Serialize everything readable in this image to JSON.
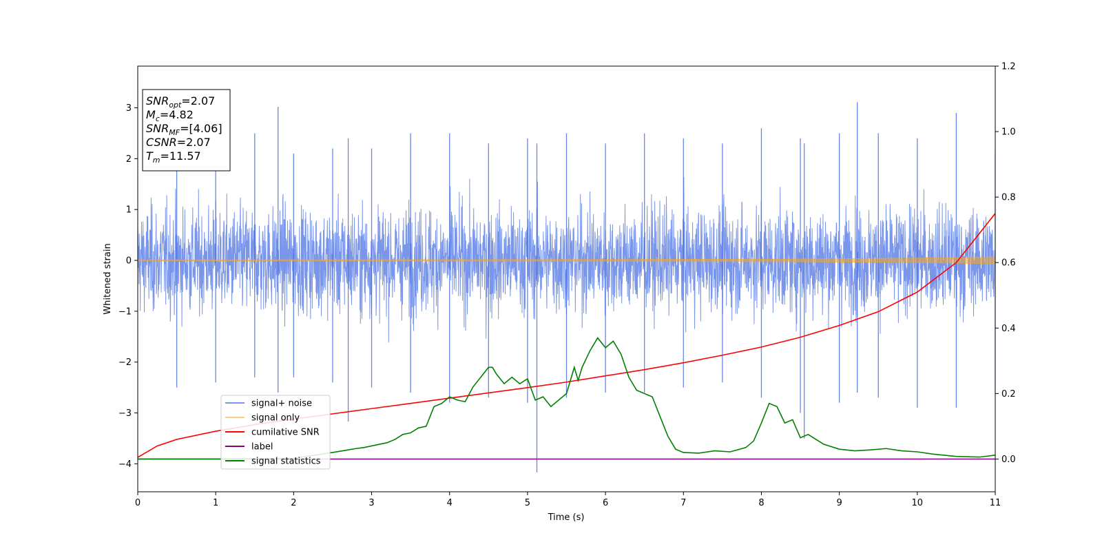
{
  "chart_data": {
    "type": "line",
    "title": "",
    "xlabel": "Time (s)",
    "ylabel": "Whitened strain",
    "xlim": [
      0,
      11
    ],
    "ylim": [
      -4.55,
      3.82
    ],
    "y2lim": [
      -0.1,
      1.2
    ],
    "xticks": [
      0,
      1,
      2,
      3,
      4,
      5,
      6,
      7,
      8,
      9,
      10,
      11
    ],
    "yticks": [
      -4,
      -3,
      -2,
      -1,
      0,
      1,
      2,
      3
    ],
    "y2ticks": [
      "0.0",
      "0.2",
      "0.4",
      "0.6",
      "0.8",
      "1.0",
      "1.2"
    ],
    "legend_position": "lower-left",
    "grid": false,
    "series": [
      {
        "name": "signal+ noise",
        "color": "#4169e1",
        "axis": "left",
        "kind": "noise",
        "sampled_envelope": {
          "x": [
            0.5,
            1.0,
            1.5,
            1.8,
            2.0,
            2.5,
            2.7,
            3.0,
            3.5,
            4.0,
            4.5,
            5.0,
            5.12,
            5.5,
            6.0,
            6.5,
            7.0,
            7.5,
            8.0,
            8.5,
            8.55,
            9.0,
            9.23,
            9.5,
            10.0,
            10.5,
            11.0
          ],
          "y_max": [
            2.3,
            2.2,
            2.5,
            3.02,
            2.1,
            2.2,
            2.4,
            2.2,
            2.5,
            2.5,
            2.3,
            2.4,
            2.3,
            2.5,
            2.3,
            2.5,
            2.4,
            2.3,
            2.6,
            2.4,
            2.3,
            2.5,
            3.11,
            2.5,
            2.4,
            2.9,
            2.1
          ],
          "y_min": [
            -2.5,
            -2.4,
            -2.3,
            -2.6,
            -2.3,
            -2.4,
            -3.17,
            -2.5,
            -2.6,
            -2.8,
            -2.7,
            -2.8,
            -4.17,
            -2.7,
            -2.6,
            -2.6,
            -2.5,
            -2.4,
            -2.7,
            -3.0,
            -3.5,
            -2.8,
            -2.6,
            -2.7,
            -2.9,
            -2.9,
            -2.6
          ]
        }
      },
      {
        "name": "signal only",
        "color": "#f5a623",
        "axis": "left",
        "kind": "chirp",
        "x": [
          0,
          2,
          4,
          6,
          8,
          9,
          10,
          10.5,
          11
        ],
        "amplitude": [
          0.01,
          0.012,
          0.014,
          0.018,
          0.025,
          0.032,
          0.045,
          0.055,
          0.07
        ]
      },
      {
        "name": "cumilative SNR",
        "color": "#ff0000",
        "axis": "right",
        "x": [
          0,
          0.25,
          0.5,
          1,
          1.5,
          2,
          2.5,
          3,
          3.5,
          4,
          4.5,
          5,
          5.5,
          6,
          6.5,
          7,
          7.5,
          8,
          8.5,
          9,
          9.5,
          10,
          10.5,
          11
        ],
        "values": [
          0.005,
          0.04,
          0.06,
          0.085,
          0.105,
          0.122,
          0.138,
          0.154,
          0.17,
          0.186,
          0.202,
          0.218,
          0.235,
          0.254,
          0.273,
          0.294,
          0.317,
          0.342,
          0.372,
          0.408,
          0.45,
          0.51,
          0.6,
          0.75
        ]
      },
      {
        "name": "label",
        "color": "#800080",
        "axis": "right",
        "x": [
          0,
          11
        ],
        "values": [
          0.0,
          0.0
        ]
      },
      {
        "name": "signal statistics",
        "color": "#008000",
        "axis": "right",
        "x": [
          0,
          1.0,
          2.0,
          2.5,
          2.7,
          2.8,
          2.9,
          3.0,
          3.1,
          3.2,
          3.3,
          3.4,
          3.5,
          3.6,
          3.7,
          3.8,
          3.9,
          4.0,
          4.1,
          4.2,
          4.3,
          4.4,
          4.5,
          4.55,
          4.6,
          4.7,
          4.8,
          4.9,
          5.0,
          5.1,
          5.2,
          5.3,
          5.4,
          5.5,
          5.6,
          5.65,
          5.7,
          5.8,
          5.9,
          6.0,
          6.1,
          6.2,
          6.3,
          6.4,
          6.5,
          6.6,
          6.7,
          6.8,
          6.9,
          7.0,
          7.2,
          7.4,
          7.6,
          7.8,
          7.9,
          8.0,
          8.1,
          8.2,
          8.3,
          8.4,
          8.5,
          8.6,
          8.7,
          8.8,
          9.0,
          9.2,
          9.4,
          9.6,
          9.8,
          10.0,
          10.2,
          10.5,
          10.8,
          11.0
        ],
        "values": [
          0.0,
          0.0,
          0.002,
          0.02,
          0.028,
          0.032,
          0.035,
          0.04,
          0.045,
          0.05,
          0.06,
          0.075,
          0.08,
          0.095,
          0.1,
          0.16,
          0.17,
          0.19,
          0.18,
          0.175,
          0.22,
          0.25,
          0.28,
          0.28,
          0.26,
          0.23,
          0.25,
          0.23,
          0.245,
          0.18,
          0.19,
          0.16,
          0.18,
          0.2,
          0.28,
          0.24,
          0.28,
          0.33,
          0.37,
          0.34,
          0.36,
          0.32,
          0.25,
          0.21,
          0.2,
          0.19,
          0.13,
          0.07,
          0.03,
          0.02,
          0.018,
          0.025,
          0.022,
          0.035,
          0.055,
          0.11,
          0.17,
          0.16,
          0.11,
          0.12,
          0.065,
          0.075,
          0.06,
          0.045,
          0.03,
          0.025,
          0.028,
          0.032,
          0.025,
          0.022,
          0.015,
          0.008,
          0.006,
          0.012
        ]
      }
    ],
    "annotations": [
      {
        "id": "snr_opt",
        "base": "SNR",
        "sub": "opt",
        "value": "=2.07"
      },
      {
        "id": "mc",
        "base": "M",
        "sub": "c",
        "value": "=4.82"
      },
      {
        "id": "snr_mf",
        "base": "SNR",
        "sub": "MF",
        "value": "=[4.06]"
      },
      {
        "id": "csnr",
        "base": "CSNR",
        "sub": "",
        "value": "=2.07"
      },
      {
        "id": "tm",
        "base": "T",
        "sub": "m",
        "value": "=11.57"
      }
    ]
  }
}
